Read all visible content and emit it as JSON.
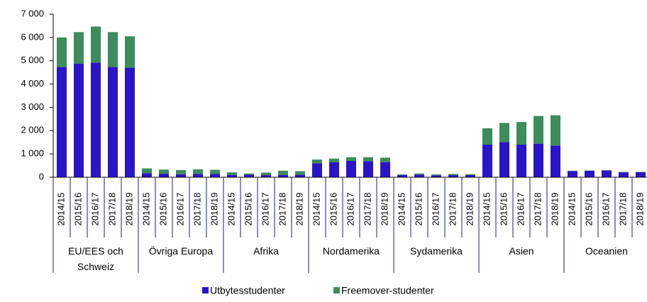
{
  "chart_data": {
    "type": "stacked_bar",
    "categories": [
      "2014/15",
      "2015/16",
      "2016/17",
      "2017/18",
      "2018/19",
      "2014/15",
      "2015/16",
      "2016/17",
      "2017/18",
      "2018/19",
      "2014/15",
      "2015/16",
      "2016/17",
      "2017/18",
      "2018/19",
      "2014/15",
      "2015/16",
      "2016/17",
      "2017/18",
      "2018/19",
      "2014/15",
      "2015/16",
      "2016/17",
      "2017/18",
      "2018/19",
      "2014/15",
      "2015/16",
      "2016/17",
      "2017/18",
      "2018/19",
      "2014/15",
      "2015/16",
      "2016/17",
      "2017/18",
      "2018/19"
    ],
    "groups": [
      "EU/EES och Schweiz",
      "Övriga Europa",
      "Afrika",
      "Nordamerika",
      "Sydamerika",
      "Asien",
      "Oceanien"
    ],
    "series": [
      {
        "name": "Utbytesstudenter",
        "color": "#2a14c8",
        "values": [
          4730,
          4870,
          4920,
          4730,
          4700,
          170,
          150,
          130,
          140,
          140,
          100,
          110,
          90,
          100,
          110,
          600,
          640,
          700,
          690,
          650,
          90,
          110,
          80,
          90,
          90,
          1400,
          1510,
          1400,
          1440,
          1360,
          260,
          280,
          290,
          210,
          220
        ]
      },
      {
        "name": "Freemover-studenter",
        "color": "#3c8c5c",
        "values": [
          1270,
          1360,
          1550,
          1500,
          1350,
          210,
          180,
          180,
          200,
          180,
          110,
          50,
          110,
          180,
          150,
          160,
          160,
          160,
          170,
          190,
          30,
          50,
          40,
          50,
          40,
          700,
          820,
          970,
          1190,
          1300,
          20,
          10,
          10,
          20,
          10
        ]
      }
    ],
    "ylim": [
      0,
      7000
    ],
    "yticks": [
      0,
      {
        "value": 1000,
        "label": "1 000"
      },
      {
        "value": 2000,
        "label": "2 000"
      },
      {
        "value": 3000,
        "label": "3 000"
      },
      {
        "value": 4000,
        "label": "4 000"
      },
      {
        "value": 5000,
        "label": "5 000"
      },
      {
        "value": 6000,
        "label": "6 000"
      },
      {
        "value": 7000,
        "label": "7 000"
      }
    ],
    "legend": "bottom"
  }
}
